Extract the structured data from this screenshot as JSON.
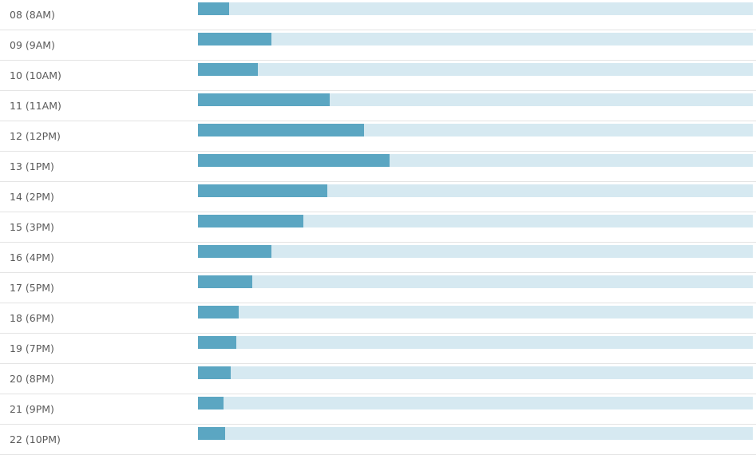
{
  "chart_data": {
    "type": "bar",
    "orientation": "horizontal",
    "categories": [
      "08 (8AM)",
      "09 (9AM)",
      "10 (10AM)",
      "11 (11AM)",
      "12 (12PM)",
      "13 (1PM)",
      "14 (2PM)",
      "15 (3PM)",
      "16 (4PM)",
      "17 (5PM)",
      "18 (6PM)",
      "19 (7PM)",
      "20 (8PM)",
      "21 (9PM)",
      "22 (10PM)"
    ],
    "values": [
      0.056,
      0.133,
      0.108,
      0.237,
      0.299,
      0.345,
      0.233,
      0.19,
      0.132,
      0.098,
      0.074,
      0.069,
      0.059,
      0.046,
      0.049
    ],
    "value_unit": "fraction of track",
    "title": "",
    "xlabel": "",
    "ylabel": "",
    "xlim": [
      0,
      1
    ],
    "grid": false,
    "legend": "none"
  },
  "colors": {
    "bar": "#5ba6c2",
    "track": "#d6e9f1",
    "divider": "#e4e4e4",
    "label": "#5a5a5a"
  }
}
